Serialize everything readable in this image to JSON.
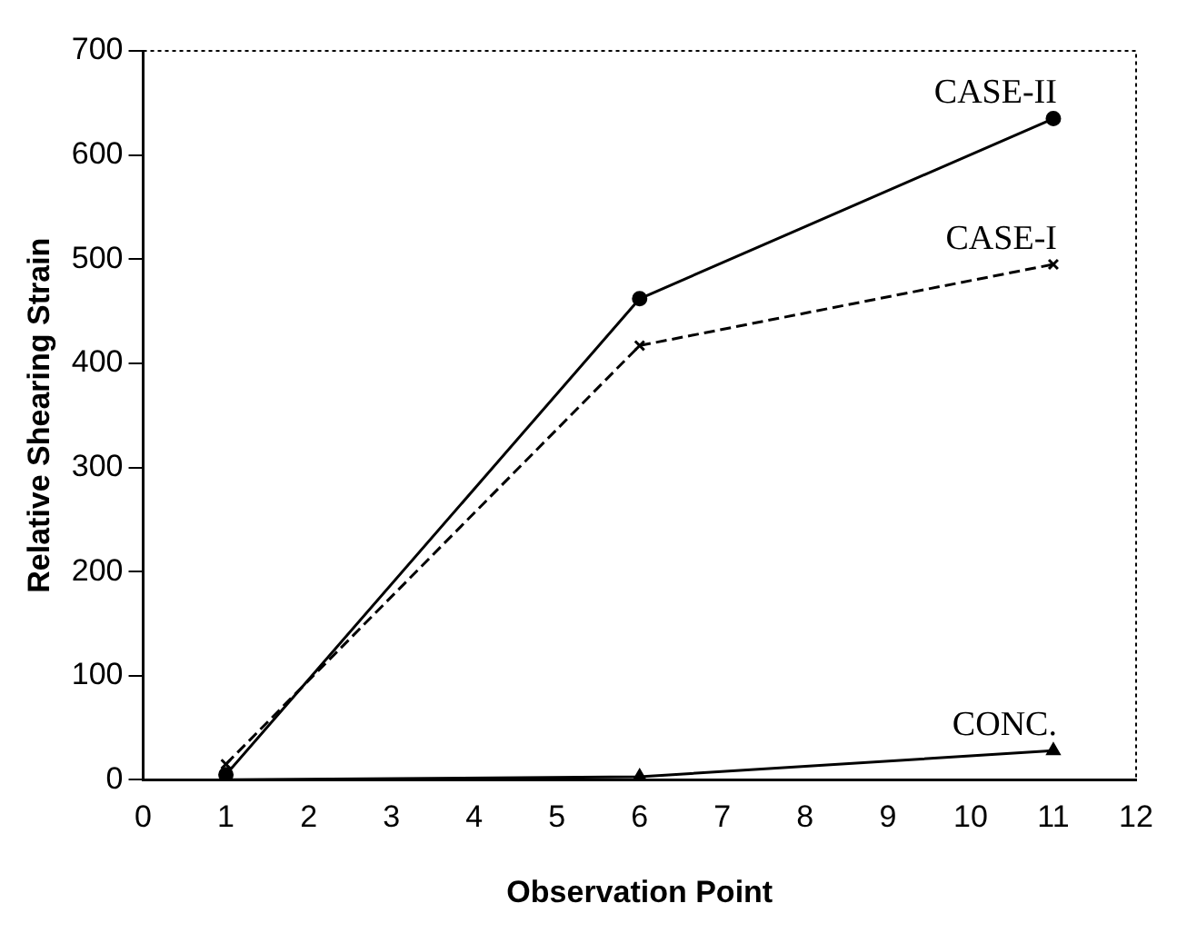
{
  "chart_data": {
    "type": "line",
    "xlabel": "Observation Point",
    "ylabel": "Relative Shearing Strain",
    "x": [
      1,
      6,
      11
    ],
    "series": [
      {
        "name": "CASE-II",
        "color": "#000000",
        "values": [
          5,
          462,
          635
        ],
        "marker": "circle",
        "line_style": "solid"
      },
      {
        "name": "CASE-I",
        "color": "#000000",
        "values": [
          15,
          417,
          495
        ],
        "marker": "cross",
        "line_style": "dashed"
      },
      {
        "name": "CONC.",
        "color": "#000000",
        "values": [
          0,
          3,
          28
        ],
        "marker": "triangle",
        "line_style": "solid"
      }
    ],
    "xlim": [
      0,
      12
    ],
    "xticks": [
      0,
      1,
      2,
      3,
      4,
      5,
      6,
      7,
      8,
      9,
      10,
      11,
      12
    ],
    "ylim": [
      0,
      700
    ],
    "yticks": [
      0,
      100,
      200,
      300,
      400,
      500,
      600,
      700
    ],
    "grid": false,
    "legend": false
  }
}
